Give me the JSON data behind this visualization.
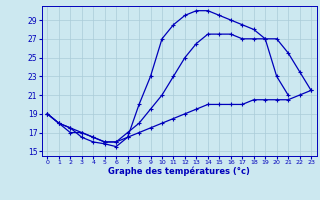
{
  "xlabel": "Graphe des températures (°c)",
  "background_color": "#cce8f0",
  "grid_color": "#aaccd8",
  "line_color": "#0000bb",
  "xlim": [
    -0.5,
    23.5
  ],
  "ylim": [
    14.5,
    30.5
  ],
  "yticks": [
    15,
    17,
    19,
    21,
    23,
    25,
    27,
    29
  ],
  "xticks": [
    0,
    1,
    2,
    3,
    4,
    5,
    6,
    7,
    8,
    9,
    10,
    11,
    12,
    13,
    14,
    15,
    16,
    17,
    18,
    19,
    20,
    21,
    22,
    23
  ],
  "line1_x": [
    0,
    1,
    2,
    3,
    4,
    5,
    6,
    7,
    8,
    9,
    10,
    11,
    12,
    13,
    14,
    15,
    16,
    17,
    18,
    19,
    20,
    21
  ],
  "line1_y": [
    19,
    18,
    17.5,
    16.5,
    16,
    15.8,
    15.5,
    16.5,
    20,
    23,
    27,
    28.5,
    29.5,
    30,
    30,
    29.5,
    29,
    28.5,
    28,
    27,
    23,
    21
  ],
  "line2_x": [
    0,
    1,
    2,
    3,
    4,
    5,
    6,
    7,
    8,
    9,
    10,
    11,
    12,
    13,
    14,
    15,
    16,
    17,
    18,
    19,
    20,
    21,
    22,
    23
  ],
  "line2_y": [
    19,
    18,
    17.5,
    17,
    16.5,
    16,
    16,
    17,
    18,
    19.5,
    21,
    23,
    25,
    26.5,
    27.5,
    27.5,
    27.5,
    27,
    27,
    27,
    27,
    25.5,
    23.5,
    21.5
  ],
  "line3_x": [
    0,
    1,
    2,
    3,
    4,
    5,
    6,
    7,
    8,
    9,
    10,
    11,
    12,
    13,
    14,
    15,
    16,
    17,
    18,
    19,
    20,
    21,
    22,
    23
  ],
  "line3_y": [
    19,
    18,
    17,
    17,
    16.5,
    16,
    16,
    16.5,
    17,
    17.5,
    18,
    18.5,
    19,
    19.5,
    20,
    20,
    20,
    20,
    20.5,
    20.5,
    20.5,
    20.5,
    21,
    21.5
  ],
  "markersize": 3,
  "linewidth": 0.9
}
